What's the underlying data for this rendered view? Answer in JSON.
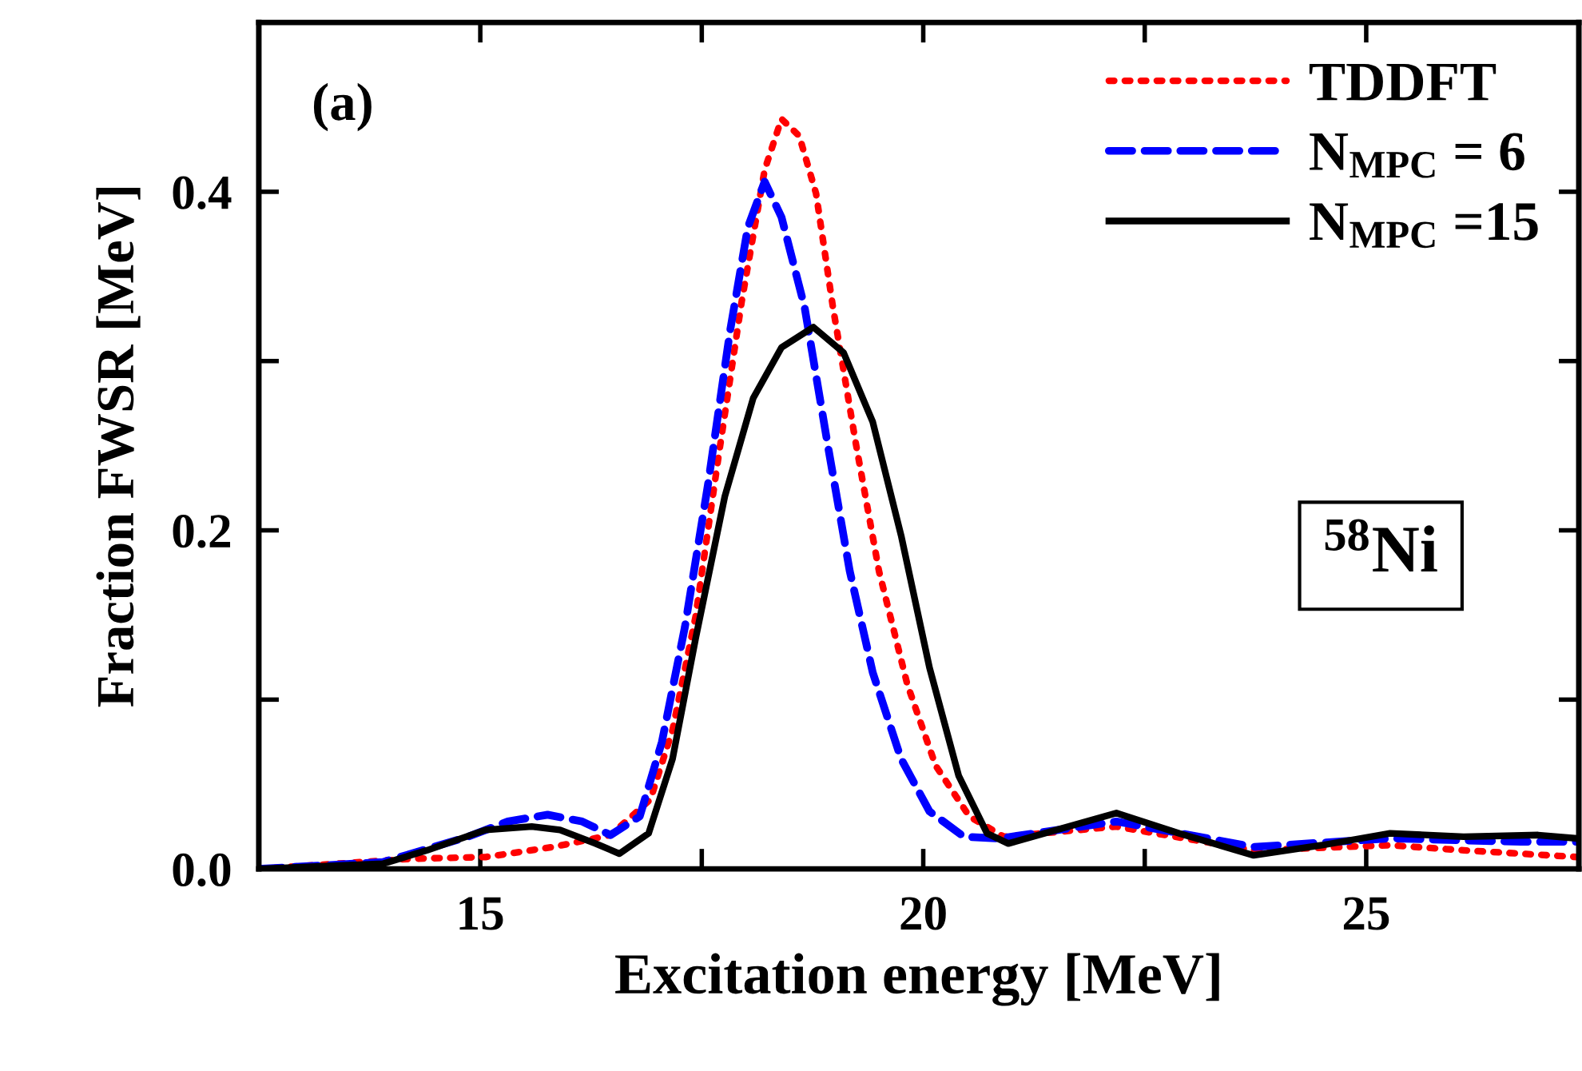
{
  "chart_data": {
    "type": "line",
    "xlabel": "Excitation energy [MeV]",
    "ylabel": "Fraction FWSR [MeV]",
    "xlim": [
      12.5,
      27.4
    ],
    "ylim": [
      0,
      0.5
    ],
    "xticks": [
      15,
      {
        "value": 17.5,
        "label": null
      },
      20,
      {
        "value": 22.5,
        "label": null
      },
      25
    ],
    "yticks": [
      {
        "value": 0,
        "label": "0.0"
      },
      {
        "value": 0.1,
        "label": null
      },
      {
        "value": 0.2,
        "label": "0.2"
      },
      {
        "value": 0.3,
        "label": null
      },
      {
        "value": 0.4,
        "label": "0.4"
      }
    ],
    "legend": "top right",
    "grid": false,
    "annotations": [
      "(a)",
      "$^{58}$Ni"
    ],
    "series": [
      {
        "name": "TDDFT",
        "color": "#ff0000",
        "line_style": "dotted",
        "x": [
          12.5,
          14.22,
          15.06,
          15.83,
          16.47,
          16.92,
          17.17,
          17.43,
          17.69,
          17.95,
          18.21,
          18.4,
          18.6,
          18.79,
          18.98,
          19.24,
          19.5,
          19.82,
          20.14,
          20.52,
          20.91,
          22.18,
          23.73,
          25.27,
          26.1,
          27.39
        ],
        "values": [
          0.0,
          0.006,
          0.007,
          0.013,
          0.02,
          0.041,
          0.082,
          0.149,
          0.244,
          0.335,
          0.413,
          0.443,
          0.433,
          0.399,
          0.332,
          0.251,
          0.176,
          0.109,
          0.061,
          0.031,
          0.019,
          0.025,
          0.011,
          0.014,
          0.011,
          0.007
        ]
      },
      {
        "name": "N$_{MPC}$ = 6",
        "color": "#0000ff",
        "line_style": "dashed",
        "x": [
          12.5,
          13.9,
          14.86,
          15.31,
          15.76,
          16.15,
          16.47,
          16.8,
          17.05,
          17.31,
          17.57,
          17.82,
          18.02,
          18.21,
          18.4,
          18.66,
          18.92,
          19.17,
          19.43,
          19.75,
          20.07,
          20.46,
          20.86,
          22.18,
          23.73,
          25.27,
          26.75,
          27.39
        ],
        "values": [
          0.0,
          0.004,
          0.019,
          0.028,
          0.032,
          0.028,
          0.02,
          0.031,
          0.075,
          0.143,
          0.227,
          0.318,
          0.379,
          0.406,
          0.385,
          0.332,
          0.251,
          0.176,
          0.116,
          0.065,
          0.034,
          0.019,
          0.018,
          0.028,
          0.013,
          0.018,
          0.016,
          0.016
        ]
      },
      {
        "name": "N$_{MPC}$ =15",
        "color": "#000000",
        "line_style": "solid",
        "x": [
          12.5,
          13.9,
          14.4,
          15.06,
          15.58,
          15.9,
          16.3,
          16.57,
          16.9,
          17.17,
          17.43,
          17.76,
          18.08,
          18.4,
          18.76,
          19.1,
          19.43,
          19.75,
          20.07,
          20.4,
          20.72,
          20.96,
          22.18,
          22.89,
          23.73,
          24.5,
          25.27,
          26.1,
          26.94,
          27.39
        ],
        "values": [
          0.0,
          0.003,
          0.011,
          0.023,
          0.025,
          0.023,
          0.015,
          0.009,
          0.021,
          0.065,
          0.136,
          0.22,
          0.278,
          0.308,
          0.32,
          0.305,
          0.264,
          0.197,
          0.119,
          0.055,
          0.021,
          0.015,
          0.033,
          0.021,
          0.008,
          0.014,
          0.021,
          0.019,
          0.02,
          0.018
        ]
      }
    ]
  }
}
